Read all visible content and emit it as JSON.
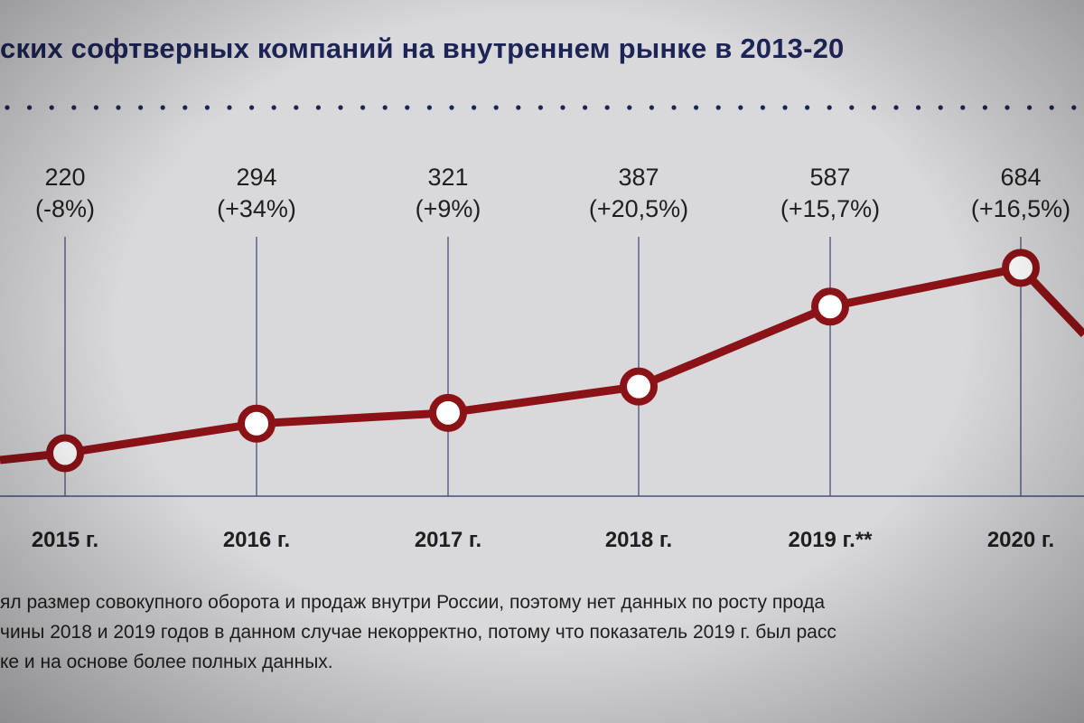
{
  "title": "ских софтверных компаний на внутреннем рынке в 2013-20",
  "chart_data": {
    "type": "line",
    "categories": [
      "2015 г.",
      "2016 г.",
      "2017 г.",
      "2018 г.",
      "2019 г.**",
      "2020 г."
    ],
    "values": [
      220,
      294,
      321,
      387,
      587,
      684
    ],
    "value_labels": [
      "220",
      "294",
      "321",
      "387",
      "587",
      "684"
    ],
    "change_labels": [
      "(-8%)",
      "(+34%)",
      "(+9%)",
      "(+20,5%)",
      "(+15,7%)",
      "(+16,5%)"
    ],
    "ylim": [
      0,
      1000
    ],
    "colors": {
      "line": "#8b1216",
      "marker_fill": "#ffffff",
      "grid": "#4a4f7a",
      "axis": "#4a4f7a",
      "title": "#1d2557"
    }
  },
  "footnotes": [
    "ял размер совокупного оборота и продаж внутри России, поэтому нет данных по росту прода",
    "чины 2018 и 2019 годов в данном случае некорректно, потому что показатель 2019 г. был расс",
    "ке и на основе более полных данных."
  ]
}
